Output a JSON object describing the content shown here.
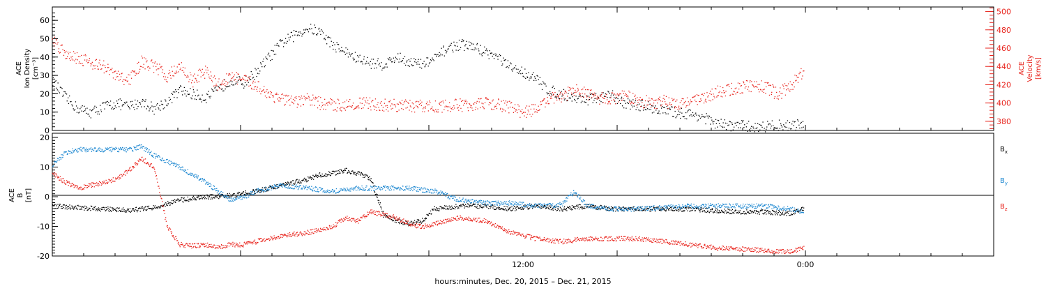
{
  "chart_data": [
    {
      "type": "scatter",
      "panel": "top",
      "ylabel_left": [
        "ACE",
        "Ion Density",
        "[cm⁻³]"
      ],
      "ylabel_right": [
        "ACE",
        "Velocity",
        "[km/s]"
      ],
      "ylim_left": [
        0,
        65
      ],
      "ylim_right": [
        370,
        505
      ],
      "yticks_left": [
        "0",
        "10",
        "20",
        "30",
        "40",
        "50",
        "60"
      ],
      "yticks_right": [
        "380",
        "400",
        "420",
        "440",
        "460",
        "480",
        "500"
      ],
      "colors": {
        "density": "#000000",
        "velocity": "#e8231c"
      },
      "series": [
        {
          "axis": "left",
          "color": "#000000",
          "points": [
            [
              0,
              27
            ],
            [
              0.5,
              18
            ],
            [
              1,
              12
            ],
            [
              1.5,
              10
            ],
            [
              2,
              13
            ],
            [
              2.5,
              15
            ],
            [
              3,
              13
            ],
            [
              3.5,
              16
            ],
            [
              4,
              12
            ],
            [
              4.5,
              16
            ],
            [
              5,
              22
            ],
            [
              5.5,
              20
            ],
            [
              6,
              18
            ],
            [
              6.5,
              22
            ],
            [
              7,
              28
            ],
            [
              7.5,
              26
            ],
            [
              8,
              32
            ],
            [
              8.5,
              40
            ],
            [
              9,
              48
            ],
            [
              9.5,
              52
            ],
            [
              10,
              56
            ],
            [
              10.5,
              54
            ],
            [
              11,
              47
            ],
            [
              11.5,
              43
            ],
            [
              12,
              39
            ],
            [
              12.5,
              37
            ],
            [
              13,
              36
            ],
            [
              13.5,
              40
            ],
            [
              14,
              38
            ],
            [
              14.5,
              36
            ],
            [
              15,
              39
            ],
            [
              15.5,
              45
            ],
            [
              16,
              47
            ],
            [
              16.5,
              46
            ],
            [
              17,
              43
            ],
            [
              17.5,
              40
            ],
            [
              18,
              34
            ],
            [
              18.5,
              32
            ],
            [
              19,
              28
            ],
            [
              19.5,
              22
            ],
            [
              20,
              20
            ],
            [
              20.5,
              18
            ],
            [
              21,
              17
            ],
            [
              21.5,
              18
            ],
            [
              22,
              19
            ],
            [
              22.5,
              15
            ],
            [
              23,
              14
            ],
            [
              23.5,
              13
            ],
            [
              24,
              11
            ],
            [
              24.5,
              10
            ],
            [
              25,
              9
            ],
            [
              25.5,
              8
            ],
            [
              26,
              4
            ],
            [
              26.5,
              3
            ],
            [
              27,
              3
            ],
            [
              27.5,
              2
            ],
            [
              28,
              2.5
            ],
            [
              28.5,
              3
            ],
            [
              29,
              3
            ],
            [
              29.5,
              3.5
            ]
          ]
        },
        {
          "axis": "right",
          "color": "#e8231c",
          "points": [
            [
              0,
              470
            ],
            [
              0.5,
              455
            ],
            [
              1,
              450
            ],
            [
              1.5,
              445
            ],
            [
              2,
              440
            ],
            [
              2.5,
              430
            ],
            [
              3,
              425
            ],
            [
              3.5,
              445
            ],
            [
              4,
              440
            ],
            [
              4.5,
              430
            ],
            [
              5,
              440
            ],
            [
              5.5,
              425
            ],
            [
              6,
              435
            ],
            [
              6.5,
              420
            ],
            [
              7,
              430
            ],
            [
              7.5,
              425
            ],
            [
              8,
              420
            ],
            [
              8.5,
              410
            ],
            [
              9,
              405
            ],
            [
              9.5,
              400
            ],
            [
              10,
              405
            ],
            [
              10.5,
              400
            ],
            [
              11,
              398
            ],
            [
              11.5,
              399
            ],
            [
              12,
              400
            ],
            [
              12.5,
              399
            ],
            [
              13,
              398
            ],
            [
              13.5,
              398
            ],
            [
              14,
              397
            ],
            [
              14.5,
              397
            ],
            [
              15,
              397
            ],
            [
              15.5,
              397
            ],
            [
              16,
              398
            ],
            [
              16.5,
              399
            ],
            [
              17,
              400
            ],
            [
              17.5,
              398
            ],
            [
              18,
              396
            ],
            [
              18.5,
              390
            ],
            [
              19,
              394
            ],
            [
              19.5,
              404
            ],
            [
              20,
              408
            ],
            [
              20.5,
              414
            ],
            [
              21,
              410
            ],
            [
              21.5,
              405
            ],
            [
              22,
              406
            ],
            [
              22.5,
              408
            ],
            [
              23,
              403
            ],
            [
              23.5,
              401
            ],
            [
              24,
              402
            ],
            [
              24.5,
              400
            ],
            [
              25,
              403
            ],
            [
              25.5,
              404
            ],
            [
              26,
              412
            ],
            [
              26.5,
              414
            ],
            [
              27,
              417
            ],
            [
              27.5,
              420
            ],
            [
              28,
              418
            ],
            [
              28.5,
              410
            ],
            [
              29,
              420
            ],
            [
              29.5,
              435
            ]
          ]
        }
      ]
    },
    {
      "type": "scatter",
      "panel": "bottom",
      "ylabel": [
        "ACE",
        "B",
        "[nT]"
      ],
      "ylim": [
        -20,
        20
      ],
      "yticks": [
        "-20",
        "-10",
        "0",
        "10",
        "20"
      ],
      "legend": [
        {
          "name": "B",
          "sub": "x",
          "color": "#000000"
        },
        {
          "name": "B",
          "sub": "y",
          "color": "#1a86d0"
        },
        {
          "name": "B",
          "sub": "z",
          "color": "#e8231c"
        }
      ],
      "series": [
        {
          "name": "Bx",
          "color": "#000000",
          "points": [
            [
              0,
              -3
            ],
            [
              1,
              -3.5
            ],
            [
              2,
              -4
            ],
            [
              3,
              -4.5
            ],
            [
              4,
              -3.5
            ],
            [
              5,
              -1
            ],
            [
              6,
              0
            ],
            [
              7,
              0.5
            ],
            [
              8,
              2
            ],
            [
              9,
              4
            ],
            [
              10,
              6
            ],
            [
              10.5,
              7.5
            ],
            [
              11,
              8
            ],
            [
              11.5,
              9
            ],
            [
              12,
              8
            ],
            [
              12.5,
              6
            ],
            [
              13,
              -6
            ],
            [
              13.5,
              -8
            ],
            [
              14,
              -9
            ],
            [
              14.5,
              -8
            ],
            [
              15,
              -4
            ],
            [
              16,
              -3
            ],
            [
              17,
              -3
            ],
            [
              18,
              -4
            ],
            [
              19,
              -3
            ],
            [
              20,
              -4
            ],
            [
              21,
              -3
            ],
            [
              22,
              -4
            ],
            [
              23,
              -4
            ],
            [
              24,
              -4
            ],
            [
              25,
              -4
            ],
            [
              26,
              -4.5
            ],
            [
              27,
              -5
            ],
            [
              28,
              -5
            ],
            [
              29,
              -5.5
            ],
            [
              29.5,
              -4
            ]
          ]
        },
        {
          "name": "By",
          "color": "#1a86d0",
          "points": [
            [
              0,
              11
            ],
            [
              0.5,
              15
            ],
            [
              1,
              16
            ],
            [
              2,
              16
            ],
            [
              3,
              16
            ],
            [
              3.5,
              17
            ],
            [
              4,
              14
            ],
            [
              5,
              10
            ],
            [
              6,
              5
            ],
            [
              6.5,
              2
            ],
            [
              7,
              -1
            ],
            [
              7.5,
              0
            ],
            [
              8,
              2
            ],
            [
              9,
              4
            ],
            [
              10,
              3
            ],
            [
              11,
              2
            ],
            [
              12,
              3
            ],
            [
              13,
              3
            ],
            [
              14,
              3
            ],
            [
              15,
              2
            ],
            [
              16,
              -1
            ],
            [
              17,
              -2
            ],
            [
              18,
              -2
            ],
            [
              19,
              -3
            ],
            [
              20,
              -2.5
            ],
            [
              20.5,
              2
            ],
            [
              21,
              -3
            ],
            [
              22,
              -4
            ],
            [
              23,
              -4
            ],
            [
              24,
              -3.5
            ],
            [
              25,
              -3
            ],
            [
              26,
              -3
            ],
            [
              27,
              -3
            ],
            [
              28,
              -3
            ],
            [
              29,
              -4
            ],
            [
              29.5,
              -5
            ]
          ]
        },
        {
          "name": "Bz",
          "color": "#e8231c",
          "points": [
            [
              0,
              8
            ],
            [
              0.5,
              5
            ],
            [
              1,
              3
            ],
            [
              1.5,
              4
            ],
            [
              2,
              5
            ],
            [
              2.5,
              6
            ],
            [
              3,
              9
            ],
            [
              3.5,
              13
            ],
            [
              4,
              10
            ],
            [
              4.5,
              -10
            ],
            [
              5,
              -16
            ],
            [
              5.5,
              -16.5
            ],
            [
              6,
              -16
            ],
            [
              6.5,
              -17
            ],
            [
              7,
              -16
            ],
            [
              7.5,
              -16
            ],
            [
              8,
              -15
            ],
            [
              8.5,
              -14
            ],
            [
              9,
              -13
            ],
            [
              10,
              -12
            ],
            [
              11,
              -10
            ],
            [
              11.5,
              -7
            ],
            [
              12,
              -8
            ],
            [
              12.5,
              -5
            ],
            [
              13,
              -6
            ],
            [
              13.5,
              -7
            ],
            [
              14,
              -9
            ],
            [
              14.5,
              -10
            ],
            [
              15,
              -9
            ],
            [
              16,
              -7
            ],
            [
              17,
              -8
            ],
            [
              18,
              -12
            ],
            [
              19,
              -14
            ],
            [
              20,
              -15
            ],
            [
              21,
              -14
            ],
            [
              22,
              -14
            ],
            [
              23,
              -14
            ],
            [
              24,
              -15
            ],
            [
              25,
              -16
            ],
            [
              26,
              -17
            ],
            [
              27,
              -17.5
            ],
            [
              28,
              -18
            ],
            [
              29,
              -18.5
            ],
            [
              29.5,
              -17
            ]
          ]
        }
      ]
    }
  ],
  "x_axis": {
    "tick_labels": [
      {
        "label": "12:00",
        "x": 0.5
      },
      {
        "label": "0:00",
        "x": 0.8
      }
    ],
    "caption": "hours:minutes, Dec. 20, 2015 – Dec. 21, 2015"
  }
}
